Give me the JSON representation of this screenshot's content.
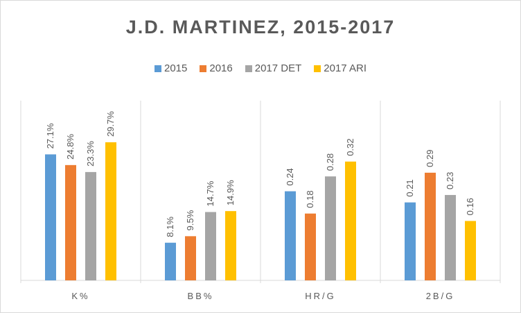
{
  "chart_data": {
    "type": "bar",
    "title": "J.D. MARTINEZ, 2015-2017",
    "categories": [
      "K%",
      "BB%",
      "HR/G",
      "2B/G"
    ],
    "series": [
      {
        "name": "2015",
        "color": "#5b9bd5",
        "values": [
          27.1,
          8.1,
          0.24,
          0.21
        ],
        "labels": [
          "27.1%",
          "8.1%",
          "0.24",
          "0.21"
        ]
      },
      {
        "name": "2016",
        "color": "#ed7d31",
        "values": [
          24.8,
          9.5,
          0.18,
          0.29
        ],
        "labels": [
          "24.8%",
          "9.5%",
          "0.18",
          "0.29"
        ]
      },
      {
        "name": "2017 DET",
        "color": "#a5a5a5",
        "values": [
          23.3,
          14.7,
          0.28,
          0.23
        ],
        "labels": [
          "23.3%",
          "14.7%",
          "0.28",
          "0.23"
        ]
      },
      {
        "name": "2017 ARI",
        "color": "#ffc000",
        "values": [
          29.7,
          14.9,
          0.32,
          0.16
        ],
        "labels": [
          "29.7%",
          "14.9%",
          "0.32",
          "0.16"
        ]
      }
    ],
    "legend_position": "top",
    "grid": false
  }
}
